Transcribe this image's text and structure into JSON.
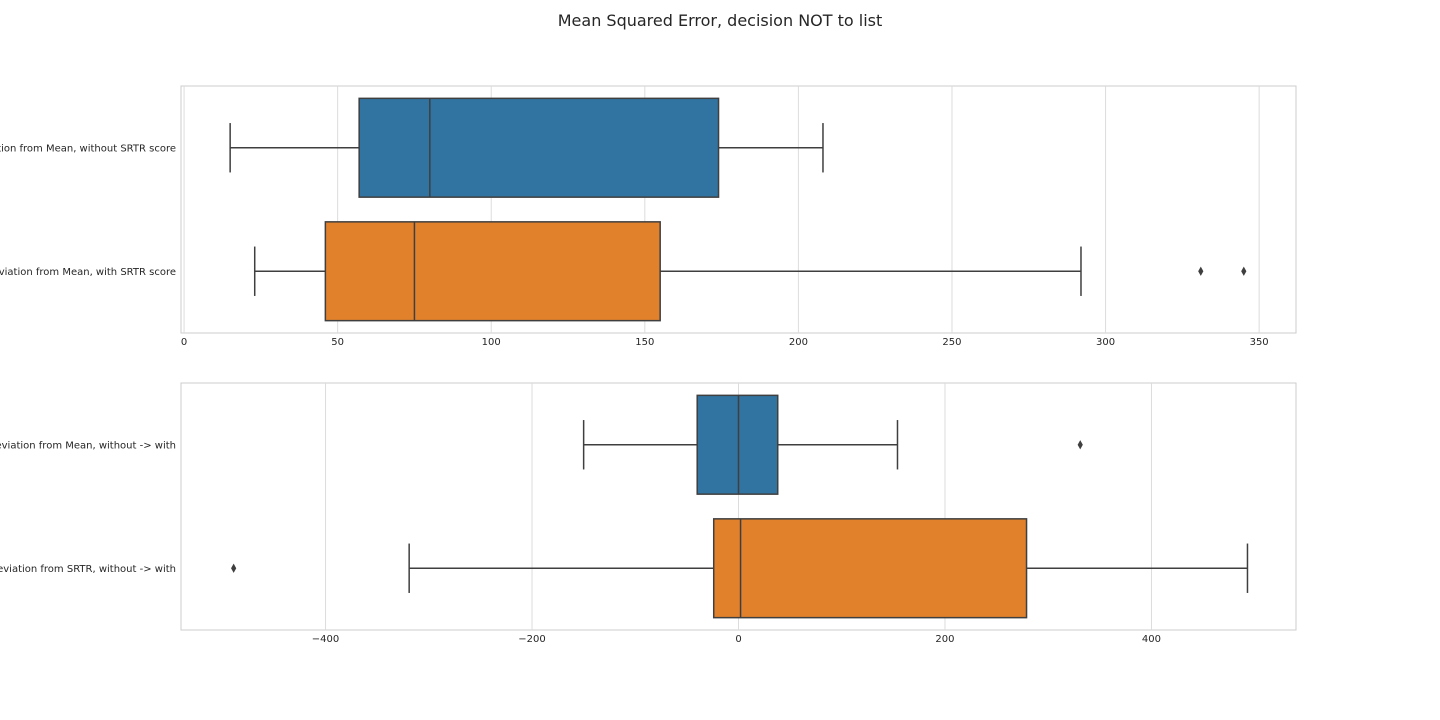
{
  "figure": {
    "suptitle": "Mean Squared Error, decision NOT to list"
  },
  "chart_data": [
    {
      "type": "boxplot",
      "orientation": "horizontal",
      "grid": true,
      "xlim": [
        -1,
        362
      ],
      "xticks": [
        0,
        50,
        100,
        150,
        200,
        250,
        300,
        350
      ],
      "xtick_labels": [
        "0",
        "50",
        "100",
        "150",
        "200",
        "250",
        "300",
        "350"
      ],
      "categories": [
        "Deviation from Mean, without SRTR score",
        "Deviation from Mean, with SRTR score"
      ],
      "series": [
        {
          "whisker_low": 15,
          "q1": 57,
          "median": 80,
          "q3": 174,
          "whisker_high": 208,
          "outliers": [],
          "color": "#3274a1"
        },
        {
          "whisker_low": 23,
          "q1": 46,
          "median": 75,
          "q3": 155,
          "whisker_high": 292,
          "outliers": [
            331,
            345
          ],
          "color": "#e1812c"
        }
      ]
    },
    {
      "type": "boxplot",
      "orientation": "horizontal",
      "grid": true,
      "xlim": [
        -540,
        540
      ],
      "xticks": [
        -400,
        -200,
        0,
        200,
        400
      ],
      "xtick_labels": [
        "−400",
        "−200",
        "0",
        "200",
        "400"
      ],
      "categories": [
        "in Deviation from Mean, without -> with",
        "in Deviation from SRTR, without -> with"
      ],
      "series": [
        {
          "whisker_low": -150,
          "q1": -40,
          "median": 0,
          "q3": 38,
          "whisker_high": 154,
          "outliers": [
            331
          ],
          "color": "#3274a1"
        },
        {
          "whisker_low": -319,
          "q1": -24,
          "median": 2,
          "q3": 279,
          "whisker_high": 493,
          "outliers": [
            -489
          ],
          "color": "#e1812c"
        }
      ]
    }
  ]
}
